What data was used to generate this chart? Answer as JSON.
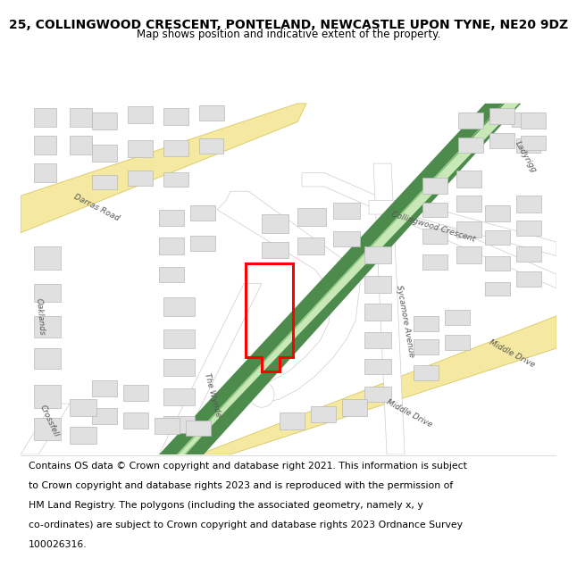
{
  "title_line1": "25, COLLINGWOOD CRESCENT, PONTELAND, NEWCASTLE UPON TYNE, NE20 9DZ",
  "title_line2": "Map shows position and indicative extent of the property.",
  "footer_lines": [
    "Contains OS data © Crown copyright and database right 2021. This information is subject",
    "to Crown copyright and database rights 2023 and is reproduced with the permission of",
    "HM Land Registry. The polygons (including the associated geometry, namely x, y",
    "co-ordinates) are subject to Crown copyright and database rights 2023 Ordnance Survey",
    "100026316."
  ],
  "map_bg": "#f8f8f8",
  "road_white": "#ffffff",
  "road_outline": "#cccccc",
  "green_dark": "#4d8b4d",
  "green_light": "#6aad5a",
  "yellow_road": "#f5e8a0",
  "yellow_outline": "#d4c050",
  "building_fill": "#e0e0e0",
  "building_stroke": "#b8b8b8",
  "highlight_color": "#ff0000",
  "title_fontsize": 10,
  "subtitle_fontsize": 8.5,
  "footer_fontsize": 7.8,
  "label_color": "#555555",
  "label_size": 6.5
}
